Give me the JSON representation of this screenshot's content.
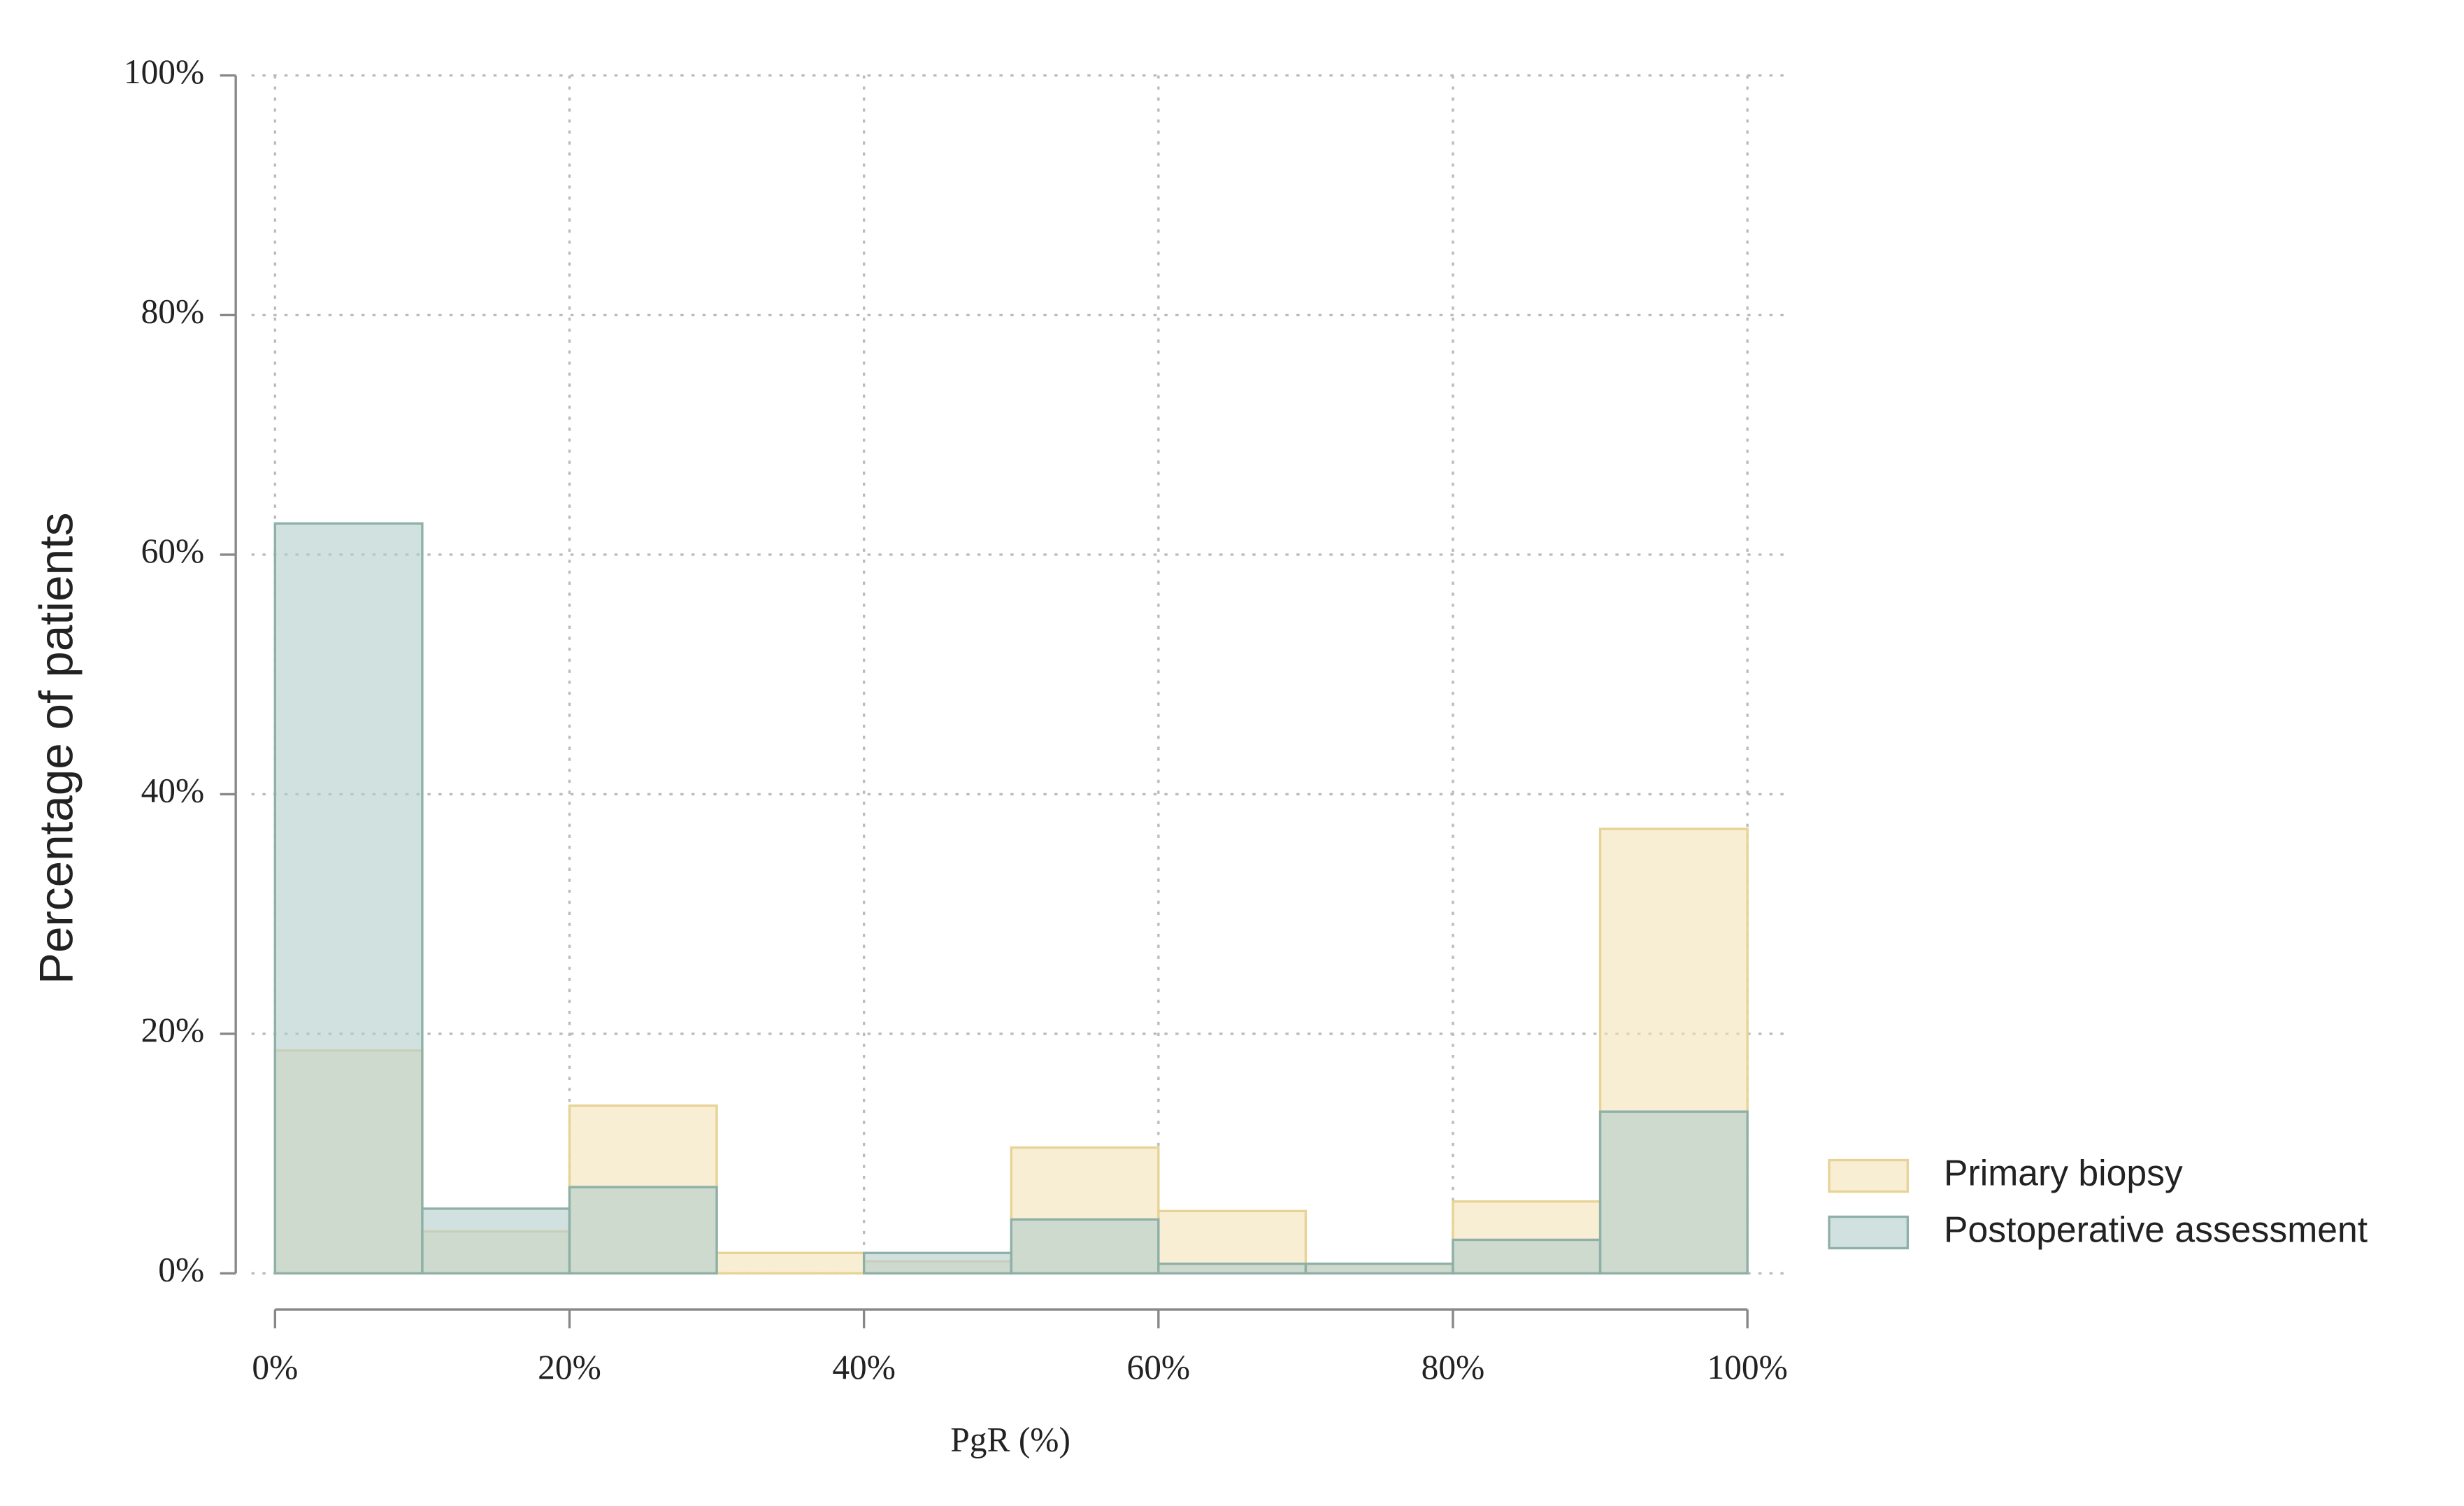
{
  "chart_data": {
    "type": "histogram",
    "x_label": "PgR (%)",
    "y_label": "Percentage of patients",
    "bins": [
      0,
      10,
      20,
      30,
      40,
      50,
      60,
      70,
      80,
      90,
      100
    ],
    "series": [
      {
        "name": "Primary biopsy",
        "color": "#f3e3b5",
        "edge": "#e8d396",
        "values": [
          18.6,
          3.5,
          14.0,
          1.7,
          1.0,
          10.5,
          5.2,
          0.8,
          6.0,
          37.1
        ]
      },
      {
        "name": "Postoperative assessment",
        "color": "#b3cdcb",
        "edge": "#8fb0a8",
        "values": [
          62.6,
          5.4,
          7.2,
          0,
          1.7,
          4.5,
          0.8,
          0.8,
          2.8,
          13.5
        ]
      }
    ],
    "xlim": [
      0,
      100
    ],
    "xticks": [
      {
        "value": 0,
        "label": "0%"
      },
      {
        "value": 20,
        "label": "20%"
      },
      {
        "value": 40,
        "label": "40%"
      },
      {
        "value": 60,
        "label": "60%"
      },
      {
        "value": 80,
        "label": "80%"
      },
      {
        "value": 100,
        "label": "100%"
      }
    ],
    "ylim": [
      0,
      100
    ],
    "yticks": [
      {
        "value": 0,
        "label": "0%"
      },
      {
        "value": 20,
        "label": "20%"
      },
      {
        "value": 40,
        "label": "40%"
      },
      {
        "value": 60,
        "label": "60%"
      },
      {
        "value": 80,
        "label": "80%"
      },
      {
        "value": 100,
        "label": "100%"
      }
    ],
    "grid": true,
    "legend": "right"
  }
}
